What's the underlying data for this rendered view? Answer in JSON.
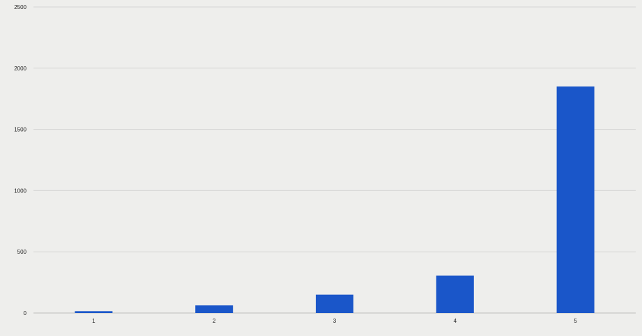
{
  "chart_data": {
    "type": "bar",
    "categories": [
      "1",
      "2",
      "3",
      "4",
      "5"
    ],
    "values": [
      15,
      62,
      150,
      305,
      1850
    ],
    "ylim": [
      0,
      2500
    ],
    "yticks": [
      "0",
      "500",
      "1000",
      "1500",
      "2000",
      "2500"
    ],
    "grid": true,
    "title": "",
    "xlabel": "",
    "ylabel": "",
    "bar_color": "#1a56c9",
    "grid_color": "#d4d4d4",
    "axis_color": "#bdbdbd"
  }
}
